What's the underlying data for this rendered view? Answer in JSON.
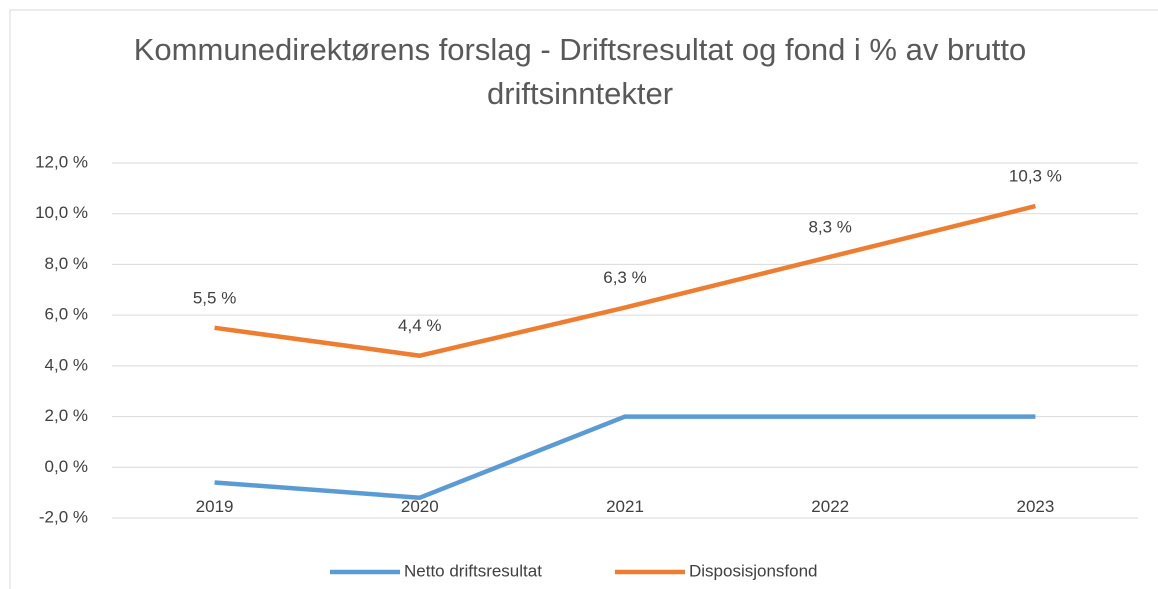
{
  "chart_data": {
    "type": "line",
    "title": "Kommunedirektørens forslag - Driftsresultat og fond i % av brutto driftsinntekter",
    "categories": [
      "2019",
      "2020",
      "2021",
      "2022",
      "2023"
    ],
    "series": [
      {
        "name": "Netto driftsresultat",
        "color": "#5b9bd5",
        "values": [
          -0.6,
          -1.2,
          2.0,
          2.0,
          2.0
        ]
      },
      {
        "name": "Disposisjonsfond",
        "color": "#ed7d31",
        "values": [
          5.5,
          4.4,
          6.3,
          8.3,
          10.3
        ],
        "value_labels": [
          "5,5 %",
          "4,4 %",
          "6,3 %",
          "8,3 %",
          "10,3 %"
        ]
      }
    ],
    "ylim": [
      -2,
      12
    ],
    "yticks": [
      {
        "value": -2,
        "label": "-2,0 %"
      },
      {
        "value": 0,
        "label": "0,0 %"
      },
      {
        "value": 2,
        "label": "2,0 %"
      },
      {
        "value": 4,
        "label": "4,0 %"
      },
      {
        "value": 6,
        "label": "6,0 %"
      },
      {
        "value": 8,
        "label": "8,0 %"
      },
      {
        "value": 10,
        "label": "10,0 %"
      },
      {
        "value": 12,
        "label": "12,0 %"
      }
    ],
    "grid": true,
    "legend": "bottom"
  }
}
